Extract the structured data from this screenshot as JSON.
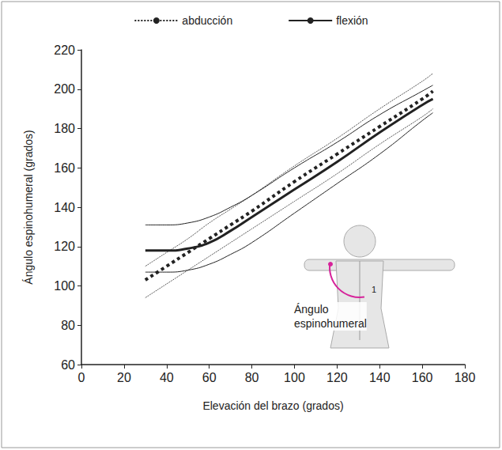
{
  "chart_data": {
    "type": "line",
    "x_label": "Elevación del brazo (grados)",
    "y_label": "Ángulo espinohumeral (grados)",
    "x": [
      30,
      40,
      50,
      60,
      70,
      80,
      100,
      120,
      140,
      160,
      165
    ],
    "series": [
      {
        "name": "abducción",
        "color": "#222222",
        "line_style": "dotted",
        "values": [
          103,
          110,
          117,
          124,
          131,
          138,
          153,
          167,
          181,
          195,
          199
        ],
        "upper": [
          110,
          117,
          124,
          132,
          139,
          146,
          161,
          175,
          190,
          204,
          208
        ],
        "lower": [
          94,
          101,
          108,
          115,
          122,
          129,
          143,
          157,
          172,
          186,
          190
        ]
      },
      {
        "name": "flexión",
        "color": "#222222",
        "line_style": "solid",
        "values": [
          118,
          118,
          119,
          122,
          128,
          135,
          149,
          163,
          178,
          192,
          195
        ],
        "upper": [
          131,
          131,
          132,
          135,
          140,
          146,
          160,
          173,
          187,
          199,
          202
        ],
        "lower": [
          107,
          107,
          108,
          111,
          116,
          122,
          137,
          152,
          167,
          184,
          188
        ]
      }
    ],
    "xlim": [
      0,
      180
    ],
    "xticks": [
      0,
      20,
      40,
      60,
      80,
      100,
      120,
      140,
      160,
      180
    ],
    "ylim": [
      60,
      220
    ],
    "yticks": [
      60,
      80,
      100,
      120,
      140,
      160,
      180,
      200,
      220
    ],
    "grid": false,
    "legend": "top",
    "annotations": [
      {
        "text": "Ángulo espinohumeral"
      },
      {
        "text": "1"
      }
    ]
  }
}
